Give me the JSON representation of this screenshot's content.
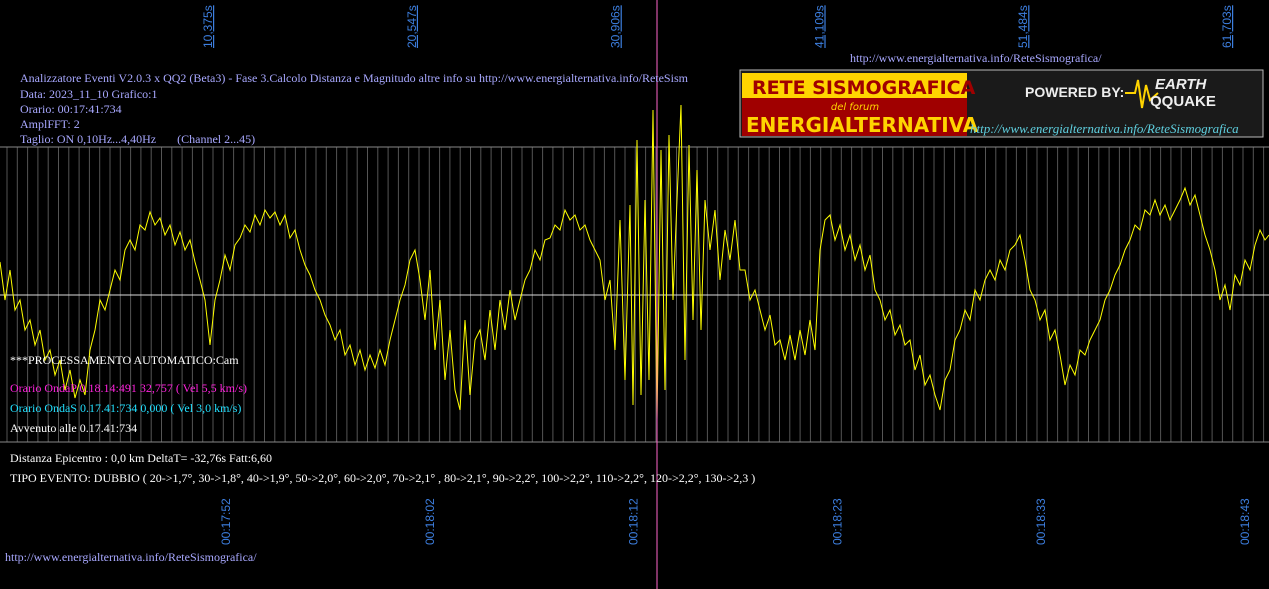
{
  "top_url": "http://www.energialternativa.info/ReteSismografica/",
  "top_ticks": [
    "10,375s",
    "20,547s",
    "30,906s",
    "41,109s",
    "51,484s",
    "61,703s"
  ],
  "bottom_ticks": [
    "00:17:52",
    "00:18:02",
    "00:18:12",
    "00:18:23",
    "00:18:33",
    "00:18:43"
  ],
  "header": {
    "lines": [
      "Analizzatore Eventi V2.0.3 x QQ2 (Beta3) - Fase 3.Calcolo Distanza e Magnitudo altre info su http://www.energialternativa.info/ReteSism",
      "Data: 2023_11_10 Grafico:1",
      "Orario: 00:17:41:734",
      "AmplFFT: 2",
      "Taglio: ON 0,10Hz...4,40Hz       (Channel 2...45)"
    ]
  },
  "logo": {
    "title": "RETE SISMOGRAFICA",
    "subtitle": "del forum",
    "name": "ENERGIALTERNATIVA",
    "powered": "POWERED BY:",
    "brand_top": "EARTH",
    "brand_bottom": "QQUAKE",
    "url": "http://www.energialternativa.info/ReteSismografica"
  },
  "processing": {
    "title": "***PROCESSAMENTO AUTOMATICO:Cam",
    "onda_p": "Orario OndaP 0.18.14:491  32,757 ( Vel 5,5 km/s)",
    "onda_s": "Orario OndaS 0.17.41:734  0,000 ( Vel 3,0 km/s)",
    "avvenuto": "Avvenuto alle 0.17.41:734"
  },
  "result": {
    "distance": "Distanza Epicentro : 0,0 km DeltaT= -32,76s  Fatt:6,60",
    "event_type": "TIPO EVENTO: DUBBIO ( 20->1,7°, 30->1,8°, 40->1,9°, 50->2,0°, 60->2,0°, 70->2,1° , 80->2,1°, 90->2,2°, 100->2,2°, 110->2,2°, 120->2,2°, 130->2,3 )"
  },
  "footer_url": "http://www.energialternativa.info/ReteSismografica/"
}
